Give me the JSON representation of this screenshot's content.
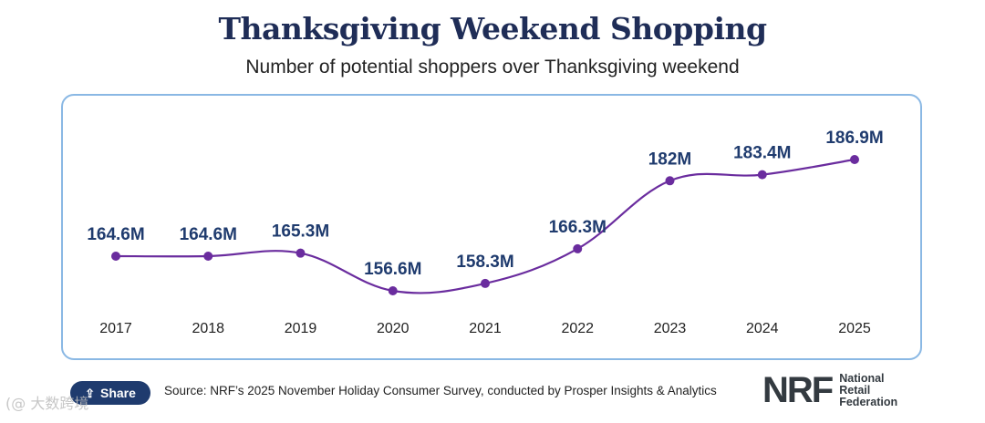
{
  "header": {
    "title": "Thanksgiving Weekend Shopping",
    "subtitle": "Number of potential shoppers over Thanksgiving weekend"
  },
  "chart_data": {
    "type": "line",
    "title": "Thanksgiving Weekend Shopping",
    "subtitle": "Number of potential shoppers over Thanksgiving weekend",
    "xlabel": "",
    "ylabel": "",
    "categories": [
      "2017",
      "2018",
      "2019",
      "2020",
      "2021",
      "2022",
      "2023",
      "2024",
      "2025"
    ],
    "values": [
      164.6,
      164.6,
      165.3,
      156.6,
      158.3,
      166.3,
      182,
      183.4,
      186.9
    ],
    "data_labels": [
      "164.6M",
      "164.6M",
      "165.3M",
      "156.6M",
      "158.3M",
      "166.3M",
      "182M",
      "183.4M",
      "186.9M"
    ],
    "unit": "millions",
    "grid": false,
    "legend": "none",
    "color": "#6a2c9e"
  },
  "footer": {
    "share_label": "Share",
    "share_icon": "share-icon",
    "source": "Source: NRF’s 2025 November Holiday Consumer Survey, conducted by Prosper Insights & Analytics",
    "logo_mark": "NRF",
    "logo_line1": "National",
    "logo_line2": "Retail",
    "logo_line3": "Federation"
  },
  "watermark": "(@ 大数跨境"
}
